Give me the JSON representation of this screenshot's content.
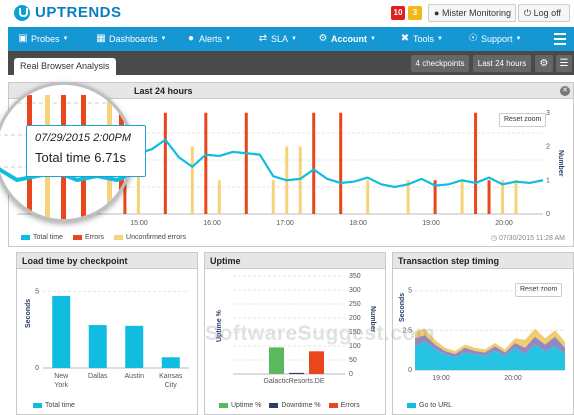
{
  "brand": {
    "name": "UPTRENDS"
  },
  "header": {
    "alert_red": "10",
    "alert_yellow": "3",
    "user": "Mister Monitoring",
    "logoff": "Log off"
  },
  "nav": {
    "items": [
      {
        "label": "Probes",
        "icon": "monitor-icon"
      },
      {
        "label": "Dashboards",
        "icon": "bar-chart-icon"
      },
      {
        "label": "Alerts",
        "icon": "alert-icon"
      },
      {
        "label": "SLA",
        "icon": "arrows-icon"
      },
      {
        "label": "Account",
        "icon": "gear-icon"
      },
      {
        "label": "Tools",
        "icon": "wrench-icon"
      },
      {
        "label": "Support",
        "icon": "headset-icon"
      }
    ]
  },
  "subheader": {
    "tab": "Real Browser Analysis",
    "checkpoints": "4 checkpoints",
    "range": "Last 24 hours"
  },
  "main_panel": {
    "title": "Last 24 hours",
    "reset_zoom": "Reset zoom",
    "timestamp": "07/30/2015 11:28 AM",
    "tooltip": {
      "date": "07/29/2015 2:00PM",
      "total": "Total time 6.71s"
    }
  },
  "load_panel": {
    "title": "Load time by checkpoint"
  },
  "uptime_panel": {
    "title": "Uptime"
  },
  "step_panel": {
    "title": "Transaction step timing",
    "reset_zoom": "Reset zoom"
  },
  "watermark": "SoftwareSuggest.com",
  "colors": {
    "accent": "#1497d3",
    "total_time": "#10bde0",
    "errors": "#e8461c",
    "unconfirmed": "#f6d27a",
    "uptime": "#5cb85c",
    "downtime": "#2a3f6a"
  },
  "chart_data": [
    {
      "type": "line",
      "name": "main-timeline",
      "x_ticks": [
        "15:00",
        "16:00",
        "17:00",
        "18:00",
        "19:00",
        "20:00"
      ],
      "y_right_ticks": [
        0,
        1,
        2,
        3
      ],
      "y_right_label": "Number",
      "series": [
        {
          "name": "Total time",
          "values": [
            4.8,
            4.5,
            4.6,
            4.7,
            4.5,
            4.6,
            4.5,
            4.7,
            4.6,
            4.5,
            4.8,
            5.5,
            4.2,
            3.5,
            4.4,
            4.3,
            4.6,
            4.5,
            4.4,
            2.8,
            2.5,
            2.6,
            3.3,
            2.6,
            2.3,
            2.4,
            2.7,
            2.2,
            2.0,
            2.2,
            2.6,
            2.1,
            2.2,
            2.5,
            2.3,
            2.7,
            2.2,
            2.4,
            2.3,
            2.5
          ]
        },
        {
          "name": "Errors",
          "bars": [
            [
              2,
              3
            ],
            [
              5,
              2
            ],
            [
              8,
              2
            ],
            [
              11,
              3
            ],
            [
              14,
              3
            ],
            [
              17,
              3
            ],
            [
              22,
              3
            ],
            [
              24,
              3
            ],
            [
              31,
              1
            ],
            [
              34,
              3
            ],
            [
              35,
              1
            ]
          ]
        },
        {
          "name": "Unconfirmed errors",
          "bars": [
            [
              1,
              1
            ],
            [
              3,
              2
            ],
            [
              6,
              2
            ],
            [
              9,
              2
            ],
            [
              13,
              2
            ],
            [
              15,
              1
            ],
            [
              19,
              1
            ],
            [
              20,
              2
            ],
            [
              21,
              2
            ],
            [
              26,
              1
            ],
            [
              29,
              1
            ],
            [
              33,
              1
            ],
            [
              36,
              1
            ],
            [
              37,
              1
            ]
          ]
        }
      ],
      "legend": [
        "Total time",
        "Errors",
        "Unconfirmed errors"
      ]
    },
    {
      "type": "bar",
      "name": "load-time-by-checkpoint",
      "categories": [
        "New York",
        "Dallas",
        "Austin",
        "Kansas City"
      ],
      "values": [
        4.7,
        2.8,
        2.75,
        0.7
      ],
      "ylabel": "Seconds",
      "yticks": [
        0,
        5
      ],
      "ylim": [
        0,
        6
      ],
      "legend": [
        "Total time"
      ]
    },
    {
      "type": "bar",
      "name": "uptime",
      "categories": [
        "GalacticResorts.DE"
      ],
      "series": [
        {
          "name": "Uptime %",
          "value": 95
        },
        {
          "name": "Downtime %",
          "value": 4
        },
        {
          "name": "Errors",
          "value": 81
        }
      ],
      "ylabel": "Uptime %",
      "y_right_label": "Number",
      "y_right_ticks": [
        0,
        50,
        100,
        150,
        200,
        250,
        300,
        350
      ],
      "ylim": [
        0,
        350
      ]
    },
    {
      "type": "area",
      "name": "transaction-step-timing",
      "x_ticks": [
        "19:00",
        "20:00"
      ],
      "ylabel": "Seconds",
      "yticks": [
        0,
        2.5,
        5
      ],
      "series": [
        {
          "name": "Go to URL",
          "values": [
            1.5,
            1.8,
            1.3,
            1.0,
            0.8,
            1.1,
            1.0,
            0.9,
            1.2,
            0.9,
            1.4,
            1.0,
            1.6,
            1.2,
            1.5,
            1.0
          ]
        },
        {
          "name": "",
          "values": [
            0.5,
            0.4,
            0.3,
            0.2,
            0.2,
            0.3,
            0.2,
            0.2,
            0.3,
            0.2,
            0.3,
            0.4,
            0.5,
            0.4,
            0.6,
            0.4
          ]
        },
        {
          "name": "",
          "values": [
            0.4,
            0.4,
            0.3,
            0.2,
            0.2,
            0.2,
            0.2,
            0.2,
            0.2,
            0.2,
            0.3,
            0.5,
            0.5,
            0.4,
            0.4,
            0.4
          ]
        }
      ],
      "legend": [
        "Go to URL"
      ]
    }
  ]
}
